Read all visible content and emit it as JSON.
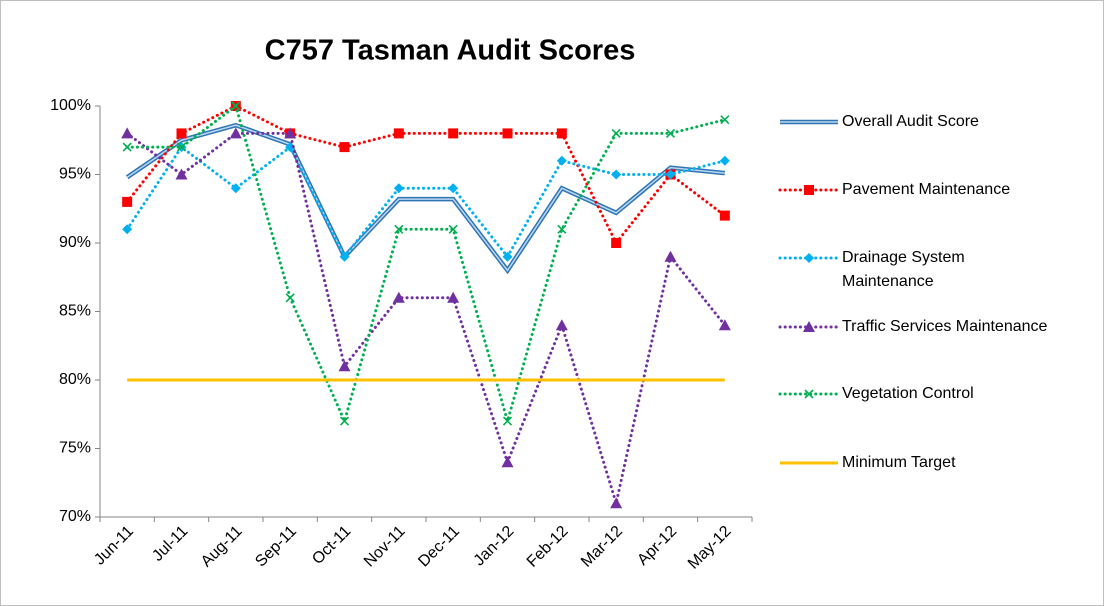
{
  "chart_data": {
    "type": "line",
    "title": "C757 Tasman Audit Scores",
    "categories": [
      "Jun-11",
      "Jul-11",
      "Aug-11",
      "Sep-11",
      "Oct-11",
      "Nov-11",
      "Dec-11",
      "Jan-12",
      "Feb-12",
      "Mar-12",
      "Apr-12",
      "May-12"
    ],
    "series": [
      {
        "name": "Overall Audit Score",
        "color": "#2e75b6",
        "line_style": "double",
        "marker": "none",
        "values": [
          94.8,
          97.5,
          98.6,
          97.2,
          89,
          93.2,
          93.2,
          88,
          94,
          92.2,
          95.5,
          95.1
        ]
      },
      {
        "name": "Pavement Maintenance",
        "color": "#ff0000",
        "line_style": "dotted",
        "marker": "square",
        "values": [
          93,
          98,
          100,
          98,
          97,
          98,
          98,
          98,
          98,
          90,
          95,
          92
        ]
      },
      {
        "name": "Drainage System Maintenance",
        "color": "#00b0f0",
        "line_style": "dotted",
        "marker": "diamond",
        "values": [
          91,
          97,
          94,
          97,
          89,
          94,
          94,
          89,
          96,
          95,
          95,
          96
        ]
      },
      {
        "name": "Traffic Services Maintenance",
        "color": "#7030a0",
        "line_style": "dotted",
        "marker": "triangle",
        "values": [
          98,
          95,
          98,
          98,
          81,
          86,
          86,
          74,
          84,
          71,
          89,
          84
        ]
      },
      {
        "name": "Vegetation Control",
        "color": "#00b050",
        "line_style": "dotted",
        "marker": "x",
        "values": [
          97,
          97,
          100,
          86,
          77,
          91,
          91,
          77,
          91,
          98,
          98,
          99
        ]
      },
      {
        "name": "Minimum Target",
        "color": "#ffc000",
        "line_style": "solid",
        "marker": "none",
        "values": [
          80,
          80,
          80,
          80,
          80,
          80,
          80,
          80,
          80,
          80,
          80,
          80
        ]
      }
    ],
    "ylim": [
      70,
      100
    ],
    "yticks": [
      {
        "value": 70,
        "label": "70%"
      },
      {
        "value": 75,
        "label": "75%"
      },
      {
        "value": 80,
        "label": "80%"
      },
      {
        "value": 85,
        "label": "85%"
      },
      {
        "value": 90,
        "label": "90%"
      },
      {
        "value": 95,
        "label": "95%"
      },
      {
        "value": 100,
        "label": "100%"
      }
    ],
    "grid": false,
    "legend": "right"
  }
}
